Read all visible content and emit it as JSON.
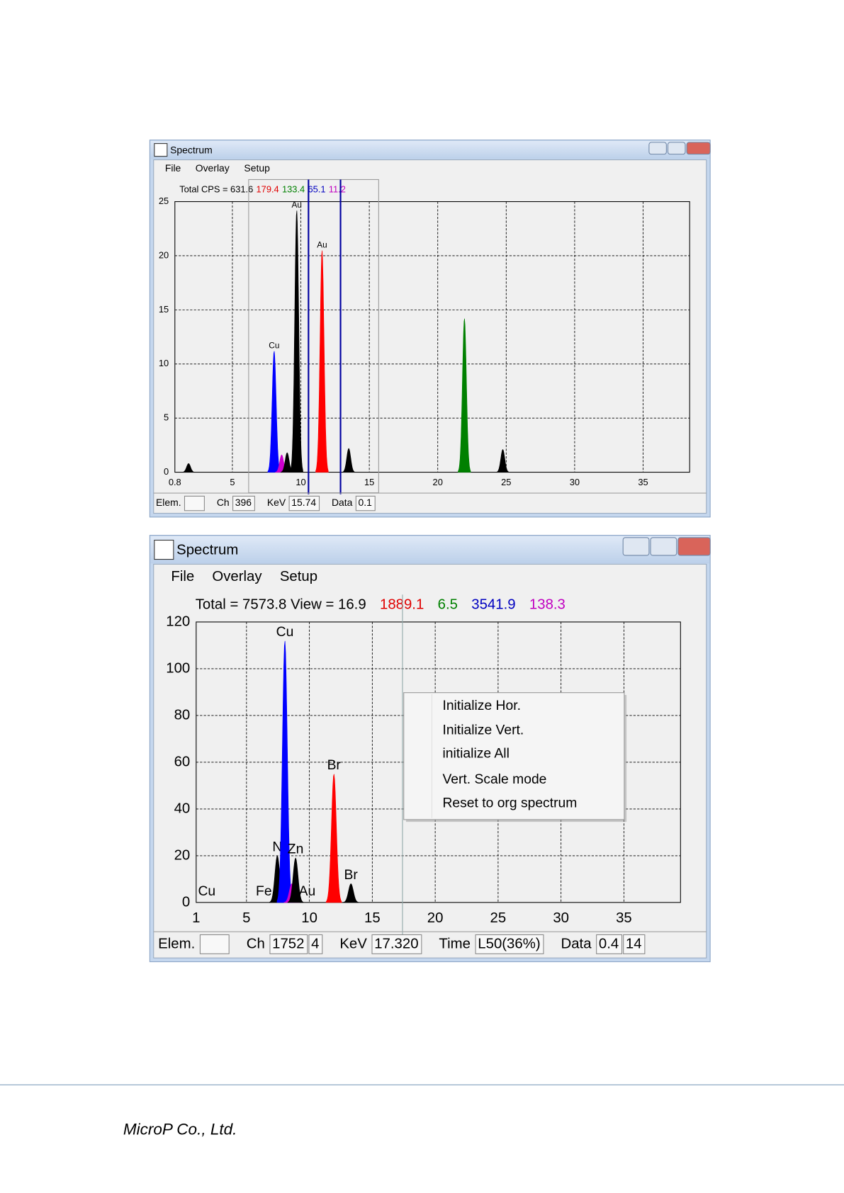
{
  "windows": [
    {
      "title": "Spectrum",
      "menu": [
        "File",
        "Overlay",
        "Setup"
      ],
      "header": [
        {
          "text": "Total CPS = 631.6",
          "color": "#000000"
        },
        {
          "text": "179.4",
          "color": "#e00000"
        },
        {
          "text": "133.4",
          "color": "#008000"
        },
        {
          "text": "65.1",
          "color": "#0000c0"
        },
        {
          "text": "11.2",
          "color": "#c000c0"
        }
      ],
      "plot": {
        "type": "spectrum",
        "xlim": [
          0.8,
          38.4
        ],
        "xticks": [
          0.8,
          5,
          10,
          15,
          20,
          25,
          30,
          35
        ],
        "ylim": [
          0,
          25
        ],
        "yticks": [
          0,
          5,
          10,
          15,
          20,
          25
        ],
        "grid": true,
        "cursors": [
          10.56,
          12.9
        ],
        "cursor_color": "#0000a0",
        "peaks": [
          {
            "x": 1.8,
            "height": 0.8,
            "color": "#000000"
          },
          {
            "x": 8.05,
            "height": 11.2,
            "color": "#0000ff",
            "label": "Cu"
          },
          {
            "x": 8.6,
            "height": 1.6,
            "color": "#cc00cc"
          },
          {
            "x": 9.0,
            "height": 1.8,
            "color": "#000000"
          },
          {
            "x": 9.7,
            "height": 24.2,
            "color": "#000000",
            "label": "Au"
          },
          {
            "x": 11.55,
            "height": 20.5,
            "color": "#ff0000",
            "label": "Au"
          },
          {
            "x": 13.5,
            "height": 2.2,
            "color": "#000000"
          },
          {
            "x": 21.95,
            "height": 14.2,
            "color": "#008000"
          },
          {
            "x": 24.75,
            "height": 2.1,
            "color": "#000000"
          }
        ]
      },
      "status": [
        {
          "label": "Elem."
        },
        {
          "label": "Ch",
          "fields": [
            "396"
          ]
        },
        {
          "label": "KeV",
          "fields": [
            "15.74"
          ]
        },
        {
          "label": "Data",
          "fields": [
            "0.1"
          ]
        }
      ]
    },
    {
      "title": "Spectrum",
      "menu": [
        "File",
        "Overlay",
        "Setup"
      ],
      "header": [
        {
          "text": "Total = 7573.8 View = 16.9",
          "color": "#000000"
        },
        {
          "text": "1889.1",
          "color": "#e00000"
        },
        {
          "text": "6.5",
          "color": "#008000"
        },
        {
          "text": "3541.9",
          "color": "#0000c0"
        },
        {
          "text": "138.3",
          "color": "#c000c0"
        }
      ],
      "plot": {
        "type": "spectrum",
        "xlim": [
          1,
          39.5
        ],
        "xticks": [
          1,
          5,
          10,
          15,
          20,
          25,
          30,
          35
        ],
        "ylim": [
          0,
          120
        ],
        "yticks": [
          0,
          20,
          40,
          60,
          80,
          100,
          120
        ],
        "grid": true,
        "cursors": [
          17.4
        ],
        "cursor_color": "#90a8a8",
        "peaks": [
          {
            "x": 7.45,
            "height": 20,
            "color": "#000000",
            "label": "N"
          },
          {
            "x": 8.05,
            "height": 112,
            "color": "#0000ff",
            "label": "Cu"
          },
          {
            "x": 8.6,
            "height": 8,
            "color": "#cc00cc"
          },
          {
            "x": 8.9,
            "height": 19,
            "color": "#000000",
            "label": "Zn"
          },
          {
            "x": 11.95,
            "height": 55,
            "color": "#ff0000",
            "label": "Br"
          },
          {
            "x": 13.3,
            "height": 8,
            "color": "#000000",
            "label": "Br"
          }
        ],
        "baseline_labels": [
          "Cu",
          "Fe",
          "Au"
        ]
      },
      "context_menu": [
        "Initialize Hor.",
        "Initialize Vert.",
        "initialize All",
        "Vert. Scale mode",
        "Reset to org spectrum"
      ],
      "status": [
        {
          "label": "Elem."
        },
        {
          "label": "Ch",
          "fields": [
            "1752",
            "4"
          ]
        },
        {
          "label": "KeV",
          "fields": [
            "17.320"
          ]
        },
        {
          "label": "Time",
          "fields": [
            "L50(36%)"
          ]
        },
        {
          "label": "Data",
          "fields": [
            "0.4",
            "14"
          ]
        }
      ]
    }
  ],
  "footer": {
    "company": "MicroP Co., Ltd."
  }
}
